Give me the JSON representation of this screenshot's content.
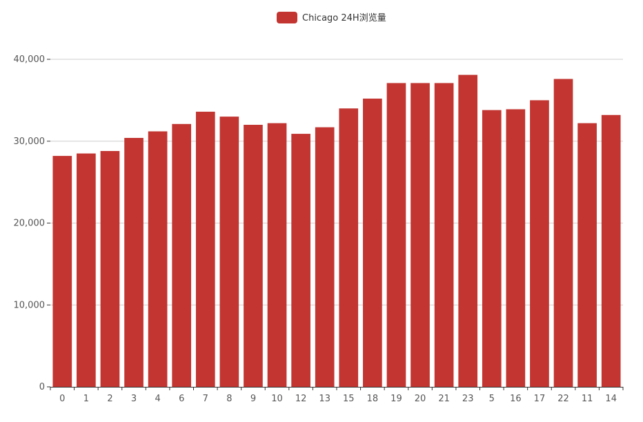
{
  "chart_data": {
    "type": "bar",
    "title": "",
    "xlabel": "",
    "ylabel": "",
    "categories": [
      "0",
      "1",
      "2",
      "3",
      "4",
      "6",
      "7",
      "8",
      "9",
      "10",
      "12",
      "13",
      "15",
      "18",
      "19",
      "20",
      "21",
      "23",
      "5",
      "16",
      "17",
      "22",
      "11",
      "14"
    ],
    "series": [
      {
        "name": "Chicago 24H浏览量",
        "color": "#c23531",
        "values": [
          28200,
          28500,
          28800,
          30400,
          31200,
          32100,
          33600,
          33000,
          32000,
          32200,
          30900,
          31700,
          34000,
          35200,
          37100,
          37100,
          37100,
          38100,
          33800,
          33900,
          35000,
          37600,
          32200,
          33200
        ]
      }
    ],
    "ylim": [
      0,
      40000
    ],
    "yticks": [
      0,
      10000,
      20000,
      30000,
      40000
    ],
    "ytick_labels": [
      "0",
      "10,000",
      "20,000",
      "30,000",
      "40,000"
    ],
    "grid": true,
    "legend_position": "top-center"
  }
}
